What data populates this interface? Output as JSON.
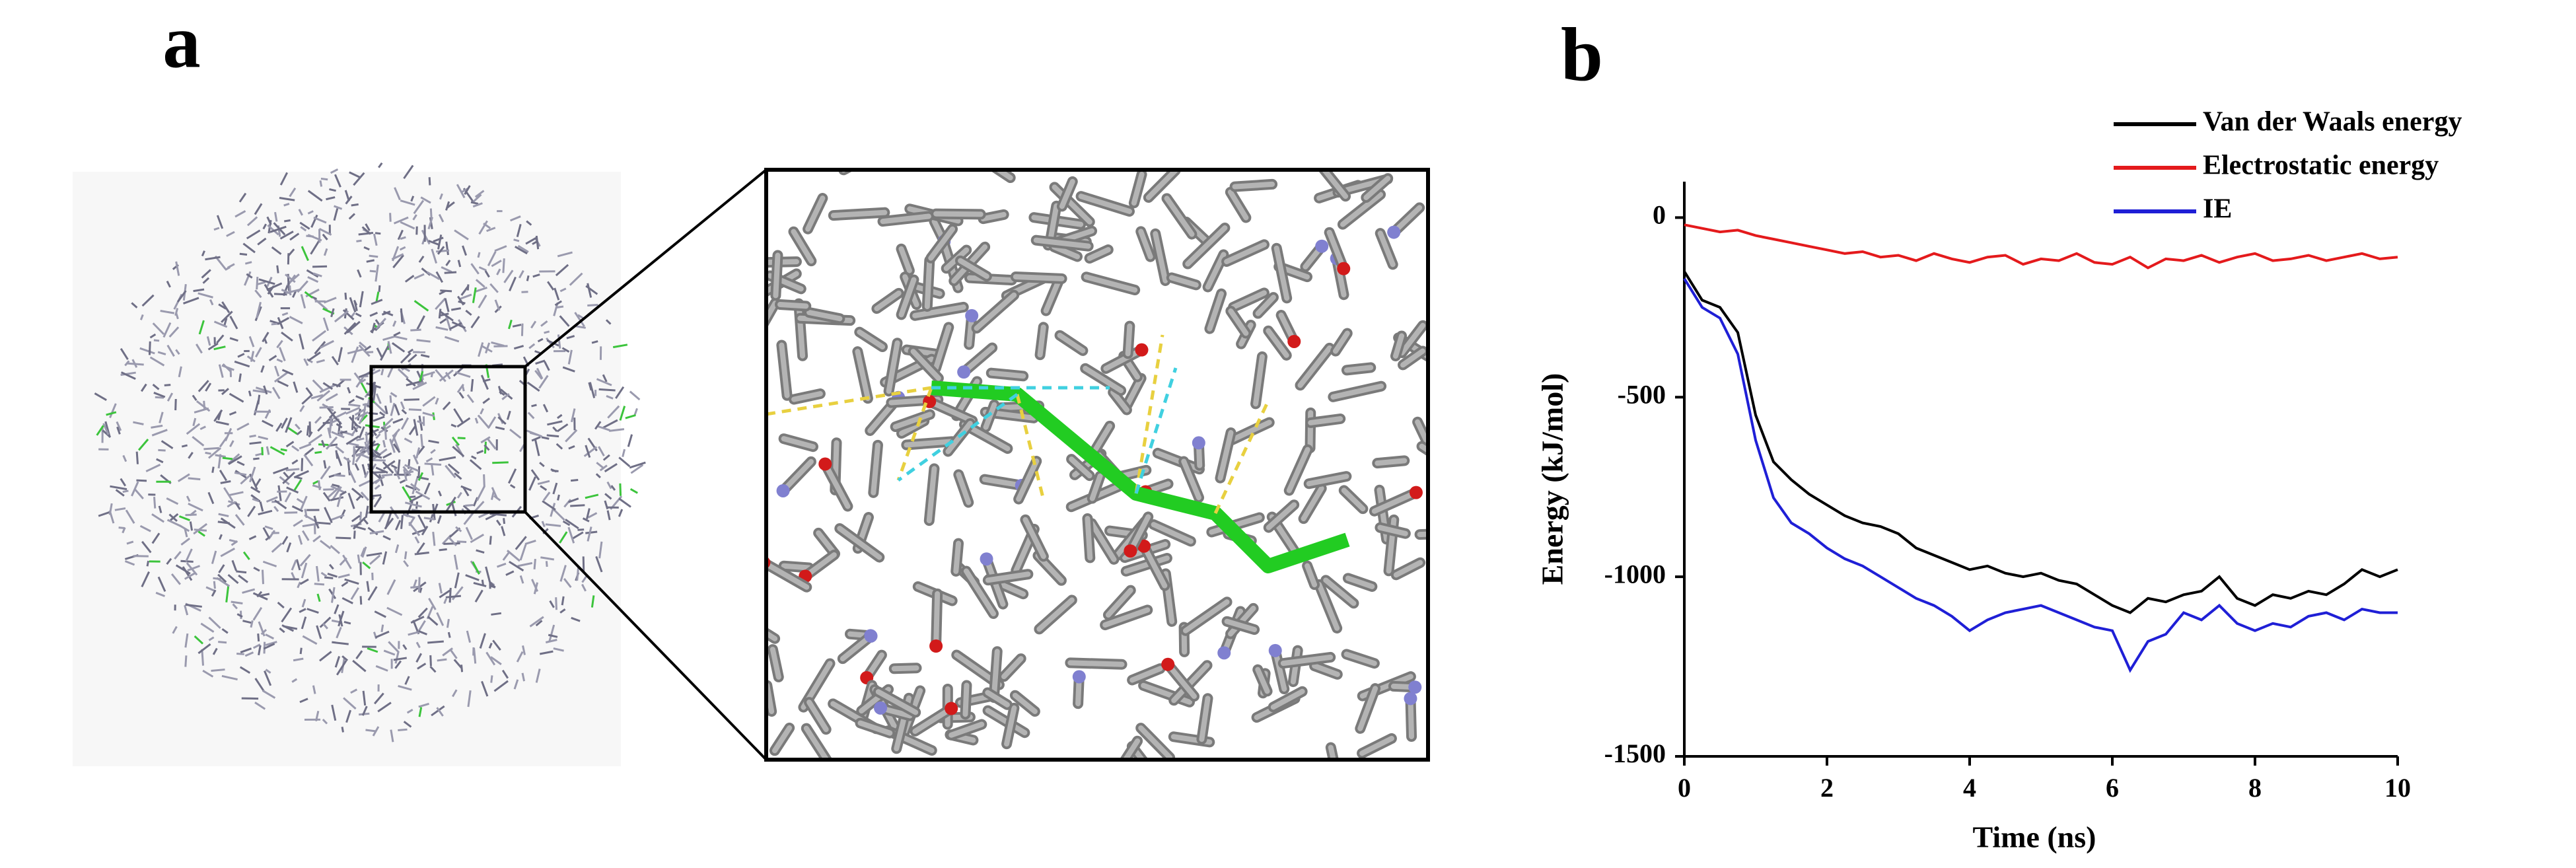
{
  "figure": {
    "panel_labels": [
      "a",
      "b"
    ]
  },
  "chart_data": {
    "type": "line",
    "xlabel": "Time (ns)",
    "ylabel": "Energy (kJ/mol)",
    "x": [
      0,
      0.25,
      0.5,
      0.75,
      1,
      1.25,
      1.5,
      1.75,
      2,
      2.25,
      2.5,
      2.75,
      3,
      3.25,
      3.5,
      3.75,
      4,
      4.25,
      4.5,
      4.75,
      5,
      5.25,
      5.5,
      5.75,
      6,
      6.25,
      6.5,
      6.75,
      7,
      7.25,
      7.5,
      7.75,
      8,
      8.25,
      8.5,
      8.75,
      9,
      9.25,
      9.5,
      9.75,
      10
    ],
    "series": [
      {
        "name": "Van der Waals energy",
        "color": "#000000",
        "values": [
          -150,
          -230,
          -250,
          -320,
          -550,
          -680,
          -730,
          -770,
          -800,
          -830,
          -850,
          -860,
          -880,
          -920,
          -940,
          -960,
          -980,
          -970,
          -990,
          -1000,
          -990,
          -1010,
          -1020,
          -1050,
          -1080,
          -1100,
          -1060,
          -1070,
          -1050,
          -1040,
          -1000,
          -1060,
          -1080,
          -1050,
          -1060,
          -1040,
          -1050,
          -1020,
          -980,
          -1000,
          -980
        ]
      },
      {
        "name": "Electrostatic energy",
        "color": "#e41a1c",
        "values": [
          -20,
          -30,
          -40,
          -35,
          -50,
          -60,
          -70,
          -80,
          -90,
          -100,
          -95,
          -110,
          -105,
          -120,
          -100,
          -115,
          -125,
          -110,
          -105,
          -130,
          -115,
          -120,
          -100,
          -125,
          -130,
          -110,
          -140,
          -115,
          -120,
          -105,
          -125,
          -110,
          -100,
          -120,
          -115,
          -105,
          -120,
          -110,
          -100,
          -115,
          -110
        ]
      },
      {
        "name": "IE",
        "color": "#1f1fd6",
        "values": [
          -170,
          -250,
          -280,
          -380,
          -620,
          -780,
          -850,
          -880,
          -920,
          -950,
          -970,
          -1000,
          -1030,
          -1060,
          -1080,
          -1110,
          -1150,
          -1120,
          -1100,
          -1090,
          -1080,
          -1100,
          -1120,
          -1140,
          -1150,
          -1260,
          -1180,
          -1160,
          -1100,
          -1120,
          -1080,
          -1130,
          -1150,
          -1130,
          -1140,
          -1110,
          -1100,
          -1120,
          -1090,
          -1100,
          -1100
        ]
      }
    ],
    "xlim": [
      0,
      10
    ],
    "xticks": [
      0,
      2,
      4,
      6,
      8,
      10
    ],
    "ylim": [
      -1500,
      100
    ],
    "yticks": [
      0,
      -500,
      -1000,
      -1500
    ],
    "legend": "upper right",
    "grid": false
  }
}
